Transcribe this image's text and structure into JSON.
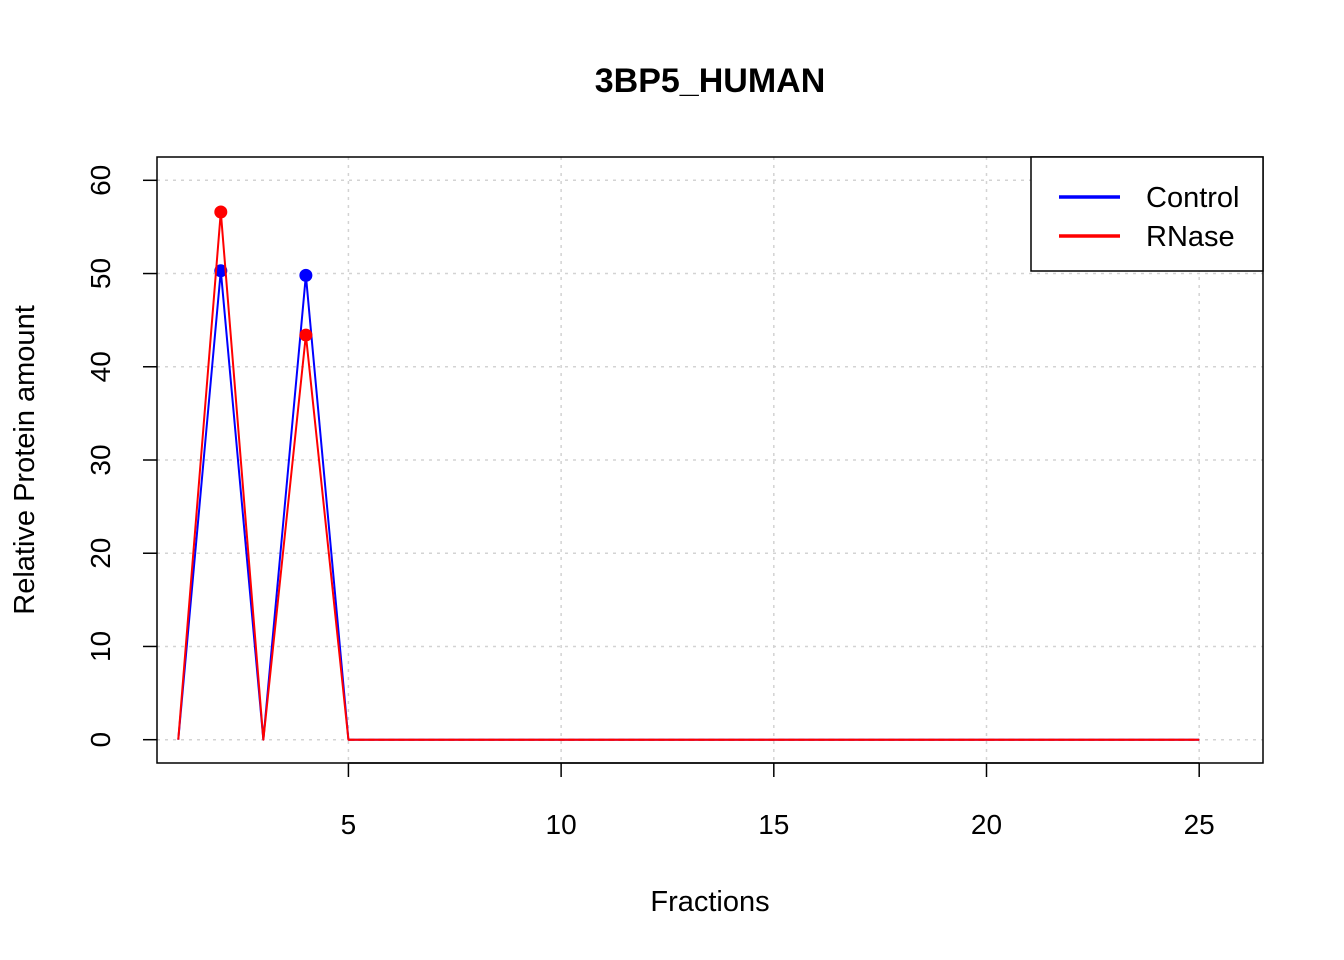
{
  "chart_data": {
    "type": "line",
    "title": "3BP5_HUMAN",
    "xlabel": "Fractions",
    "ylabel": "Relative Protein amount",
    "xlim": [
      0.5,
      26.5
    ],
    "ylim": [
      -2.5,
      62.5
    ],
    "x_ticks": [
      5,
      10,
      15,
      20,
      25
    ],
    "y_ticks": [
      0,
      10,
      20,
      30,
      40,
      50,
      60
    ],
    "grid": true,
    "legend_position": "top-right",
    "x": [
      1,
      2,
      3,
      4,
      5,
      6,
      7,
      8,
      9,
      10,
      11,
      12,
      13,
      14,
      15,
      16,
      17,
      18,
      19,
      20,
      21,
      22,
      23,
      24,
      25
    ],
    "series": [
      {
        "name": "Control",
        "color": "#0000ff",
        "values": [
          0,
          50.3,
          0,
          49.8,
          0,
          0,
          0,
          0,
          0,
          0,
          0,
          0,
          0,
          0,
          0,
          0,
          0,
          0,
          0,
          0,
          0,
          0,
          0,
          0,
          0
        ],
        "peak_markers": [
          2,
          4
        ]
      },
      {
        "name": "RNase",
        "color": "#ff0000",
        "values": [
          0,
          56.6,
          0,
          43.4,
          0,
          0,
          0,
          0,
          0,
          0,
          0,
          0,
          0,
          0,
          0,
          0,
          0,
          0,
          0,
          0,
          0,
          0,
          0,
          0,
          0
        ],
        "peak_markers": [
          2,
          4
        ]
      }
    ]
  }
}
